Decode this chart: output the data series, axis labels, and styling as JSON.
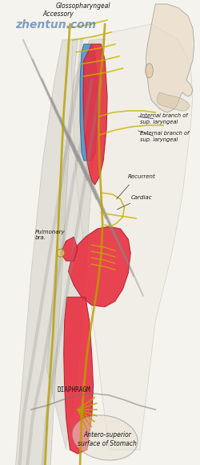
{
  "title": "",
  "background_color": "#f5f3ee",
  "watermark": "zhentun.com",
  "labels": {
    "glossopharyngeal": "Glossopharyngeal",
    "accessory": "Accessory",
    "internal_branch": "Internal branch of\nsup. laryngeal",
    "external_branch": "External branch of\nsup. laryngeal",
    "recurrent": "Recurrent",
    "cardiac": "Cardiac",
    "pulmonary_bra": "Pulmonary\nbra.",
    "diaphragm": "DIAPHRAGM",
    "antero_superior": "Antero-superior\nsurface of Stomach"
  },
  "colors": {
    "background": "#f5f3ee",
    "jugular_vein": "#4a90c8",
    "artery": "#e83040",
    "artery_edge": "#b02030",
    "nerve_yellow": "#b8a000",
    "nerve_yellow2": "#c8b400",
    "muscle_gray": "#a0a0a0",
    "dark_gray": "#555555",
    "text_color": "#1a1a1a",
    "watermark_color": "#4a7ab5"
  },
  "figsize": [
    2.5,
    5.79
  ],
  "dpi": 100
}
